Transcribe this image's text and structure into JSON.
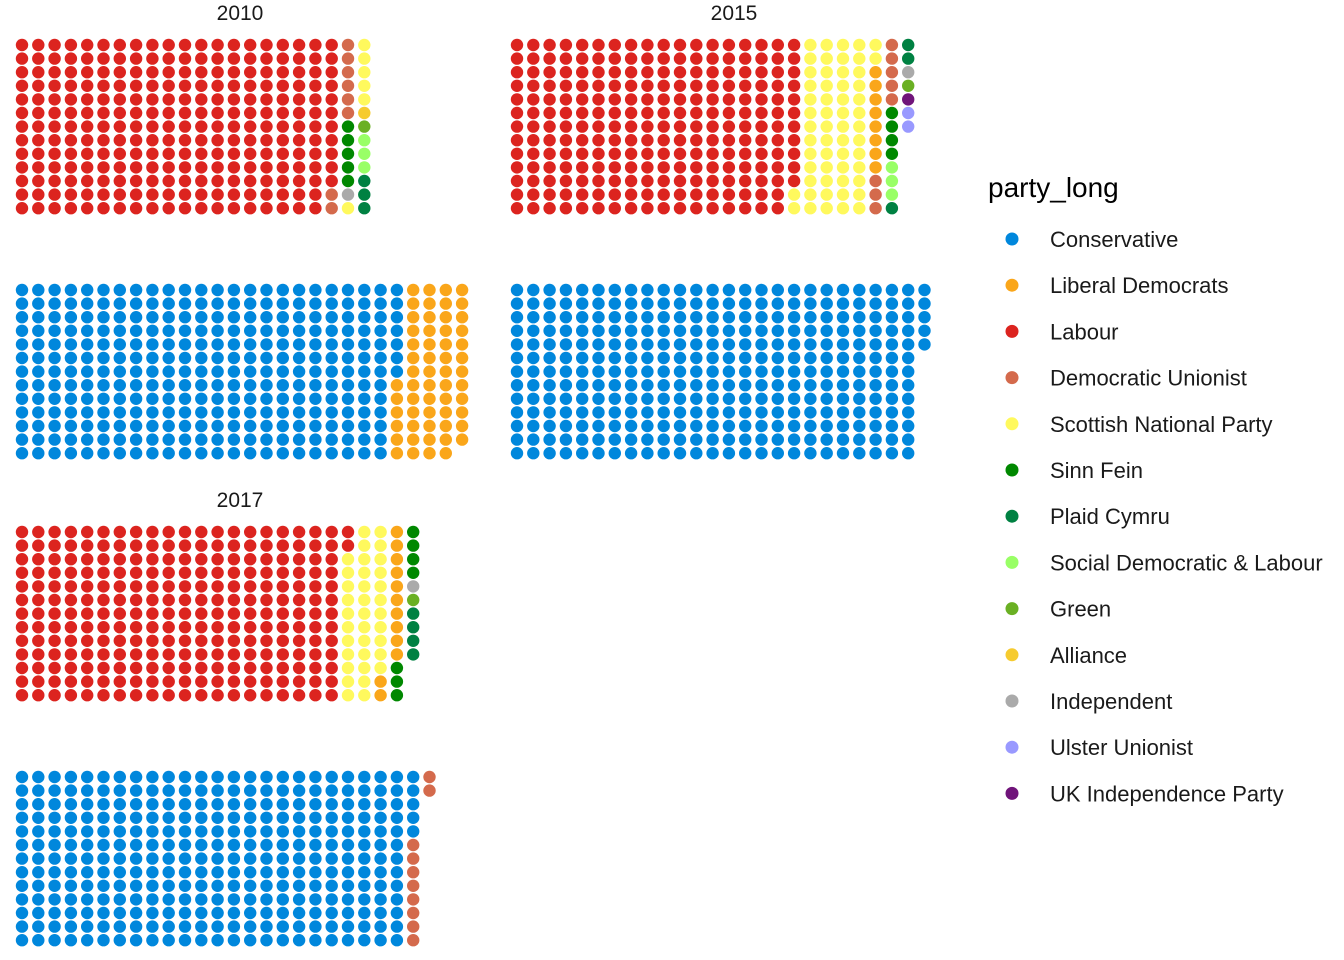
{
  "chart_data": {
    "type": "waffle",
    "layout": "parliament seats by party, opposition block (top) and government block (bottom), 13 dots per column",
    "legend": {
      "title": "party_long",
      "entries": [
        {
          "name": "Conservative",
          "color": "#0087DC"
        },
        {
          "name": "Liberal Democrats",
          "color": "#FAA61A"
        },
        {
          "name": "Labour",
          "color": "#DC241F"
        },
        {
          "name": "Democratic Unionist",
          "color": "#D46A4C"
        },
        {
          "name": "Scottish National Party",
          "color": "#FFF95D"
        },
        {
          "name": "Sinn Fein",
          "color": "#008800"
        },
        {
          "name": "Plaid Cymru",
          "color": "#008142"
        },
        {
          "name": "Social Democratic & Labour",
          "color": "#99FF66"
        },
        {
          "name": "Green",
          "color": "#6AB023"
        },
        {
          "name": "Alliance",
          "color": "#F6CB2F"
        },
        {
          "name": "Independent",
          "color": "#AAAAAA"
        },
        {
          "name": "Ulster Unionist",
          "color": "#9999FF"
        },
        {
          "name": "UK Independence Party",
          "color": "#70147A"
        }
      ]
    },
    "panels": [
      {
        "title": "2010",
        "opposition": [
          {
            "party": "Labour",
            "seats": 258
          },
          {
            "party": "Democratic Unionist",
            "seats": 8
          },
          {
            "party": "Sinn Fein",
            "seats": 5
          },
          {
            "party": "Independent",
            "seats": 1
          },
          {
            "party": "Scottish National Party",
            "seats": 6
          },
          {
            "party": "Alliance",
            "seats": 1
          },
          {
            "party": "Green",
            "seats": 1
          },
          {
            "party": "Social Democratic & Labour",
            "seats": 3
          },
          {
            "party": "Plaid Cymru",
            "seats": 3
          }
        ],
        "government": [
          {
            "party": "Conservative",
            "seats": 306
          },
          {
            "party": "Liberal Democrats",
            "seats": 57
          }
        ]
      },
      {
        "title": "2015",
        "opposition": [
          {
            "party": "Labour",
            "seats": 232
          },
          {
            "party": "Scottish National Party",
            "seats": 56
          },
          {
            "party": "Liberal Democrats",
            "seats": 8
          },
          {
            "party": "Democratic Unionist",
            "seats": 8
          },
          {
            "party": "Sinn Fein",
            "seats": 4
          },
          {
            "party": "Social Democratic & Labour",
            "seats": 3
          },
          {
            "party": "Plaid Cymru",
            "seats": 3
          },
          {
            "party": "Independent",
            "seats": 1
          },
          {
            "party": "Green",
            "seats": 1
          },
          {
            "party": "UK Independence Party",
            "seats": 1
          },
          {
            "party": "Ulster Unionist",
            "seats": 2
          }
        ],
        "government": [
          {
            "party": "Conservative",
            "seats": 330
          }
        ]
      },
      {
        "title": "2017",
        "opposition": [
          {
            "party": "Labour",
            "seats": 262
          },
          {
            "party": "Scottish National Party",
            "seats": 35
          },
          {
            "party": "Liberal Democrats",
            "seats": 12
          },
          {
            "party": "Sinn Fein",
            "seats": 7
          },
          {
            "party": "Independent",
            "seats": 1
          },
          {
            "party": "Green",
            "seats": 1
          },
          {
            "party": "Plaid Cymru",
            "seats": 4
          }
        ],
        "government": [
          {
            "party": "Conservative",
            "seats": 317
          },
          {
            "party": "Democratic Unionist",
            "seats": 10
          }
        ]
      }
    ]
  }
}
